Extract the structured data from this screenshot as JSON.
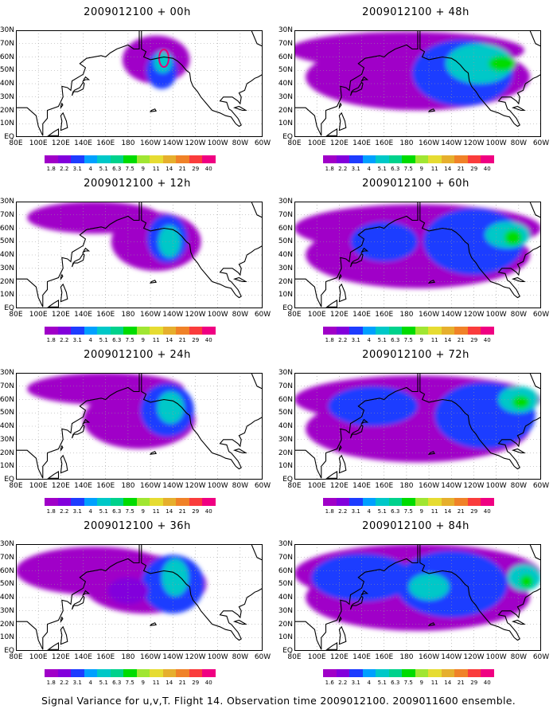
{
  "caption": "Signal Variance for u,v,T. Flight 14. Observation time 2009012100. 2009011600 ensemble.",
  "colorbar": {
    "labels": [
      "1.8",
      "2.2",
      "3.1",
      "4",
      "5.1",
      "6.3",
      "7.5",
      "9",
      "11",
      "14",
      "21",
      "29",
      "40"
    ],
    "labels_last_panel": [
      "1.6",
      "2.2",
      "3.1",
      "4",
      "5.1",
      "6.3",
      "7.5",
      "9",
      "11",
      "14",
      "21",
      "29",
      "40"
    ],
    "colors": [
      "#a000c8",
      "#8200dc",
      "#1e3cff",
      "#00a0ff",
      "#00c8c8",
      "#00d28c",
      "#00dc00",
      "#a0e632",
      "#e6dc32",
      "#e6af2d",
      "#f08228",
      "#fa3c3c",
      "#f00082"
    ]
  },
  "axes": {
    "x_ticks": [
      "80E",
      "100E",
      "120E",
      "140E",
      "160E",
      "180",
      "160W",
      "140W",
      "120W",
      "100W",
      "80W",
      "60W"
    ],
    "y_ticks": [
      "80N",
      "70N",
      "60N",
      "50N",
      "40N",
      "30N",
      "20N",
      "10N",
      "EQ"
    ],
    "y_ticks_shown": [
      "30N",
      "70N",
      "60N",
      "50N",
      "40N",
      "30N",
      "20N",
      "10N",
      "EQ"
    ]
  },
  "chart_data": [
    {
      "type": "heatmap",
      "title": "2009012100 + 00h",
      "forecast_hour": 0,
      "peak_value": 9,
      "extent": "small region over Gulf of Alaska"
    },
    {
      "type": "heatmap",
      "title": "2009012100 + 12h",
      "forecast_hour": 12,
      "peak_value": 7.5,
      "extent": "Gulf of Alaska to western North America"
    },
    {
      "type": "heatmap",
      "title": "2009012100 + 24h",
      "forecast_hour": 24,
      "peak_value": 6.3,
      "extent": "North Pacific to western North America"
    },
    {
      "type": "heatmap",
      "title": "2009012100 + 36h",
      "forecast_hour": 36,
      "peak_value": 7.5,
      "extent": "North Pacific to central North America"
    },
    {
      "type": "heatmap",
      "title": "2009012100 + 48h",
      "forecast_hour": 48,
      "peak_value": 9,
      "extent": "Asia to eastern North America"
    },
    {
      "type": "heatmap",
      "title": "2009012100 + 60h",
      "forecast_hour": 60,
      "peak_value": 9,
      "extent": "Asia to eastern North America"
    },
    {
      "type": "heatmap",
      "title": "2009012100 + 72h",
      "forecast_hour": 72,
      "peak_value": 9,
      "extent": "Asia to eastern North America"
    },
    {
      "type": "heatmap",
      "title": "2009012100 + 84h",
      "forecast_hour": 84,
      "peak_value": 11,
      "extent": "Asia to eastern North America"
    }
  ]
}
